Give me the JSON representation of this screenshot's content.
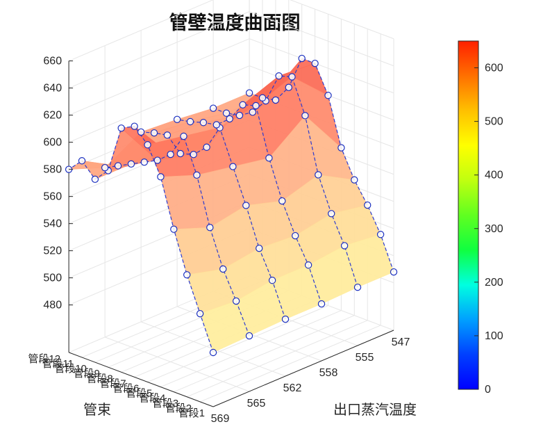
{
  "chart_data": {
    "type": "surface3d",
    "title": "管壁温度曲面图",
    "xlabel": "管束",
    "ylabel": "出口蒸汽温度",
    "zlim": [
      480,
      660
    ],
    "z_ticks": [
      "480",
      "500",
      "520",
      "540",
      "560",
      "580",
      "600",
      "620",
      "640",
      "660"
    ],
    "x_categories": [
      "管段1",
      "管段2",
      "管段3",
      "管段4",
      "管段5",
      "管段6",
      "管段7",
      "管段8",
      "管段9",
      "管段10",
      "管段11",
      "管段12"
    ],
    "x_tick_labels": [
      "管段1",
      "管段2",
      "管段3",
      "管段4",
      "管段5",
      "管段6",
      "管段7",
      "管段8",
      "管段9",
      "管段10",
      "管段11",
      "管段12"
    ],
    "y_tick_labels": [
      "569",
      "565",
      "562",
      "558",
      "555",
      "547"
    ],
    "colorbar": {
      "min": 0,
      "max": 650,
      "ticks": [
        "0",
        "100",
        "200",
        "300",
        "400",
        "500",
        "600"
      ]
    },
    "colors": {
      "marker_edge": "#1a2fbf",
      "line": "#2a3ad0",
      "axis": "#262626",
      "grid": "#e6e6e6"
    },
    "grid": true,
    "series": [
      {
        "y": 569,
        "values": [
          485,
          510,
          535,
          565,
          600,
          620,
          630,
          625,
          590,
          580,
          590,
          580
        ]
      },
      {
        "y": 565,
        "values": [
          486,
          508,
          528,
          555,
          590,
          615,
          598,
          590,
          585,
          580,
          575,
          570
        ]
      },
      {
        "y": 562,
        "values": [
          487,
          512,
          532,
          560,
          585,
          610,
          592,
          583,
          580,
          590,
          588,
          585
        ]
      },
      {
        "y": 558,
        "values": [
          487,
          512,
          530,
          552,
          580,
          615,
          612,
          598,
          590,
          588,
          585,
          583
        ]
      },
      {
        "y": 555,
        "values": [
          488,
          515,
          535,
          560,
          600,
          625,
          622,
          600,
          588,
          582,
          580,
          580
        ]
      },
      {
        "y": 547,
        "values": [
          488,
          512,
          530,
          545,
          565,
          600,
          620,
          620,
          595,
          582,
          580,
          580
        ]
      }
    ]
  }
}
